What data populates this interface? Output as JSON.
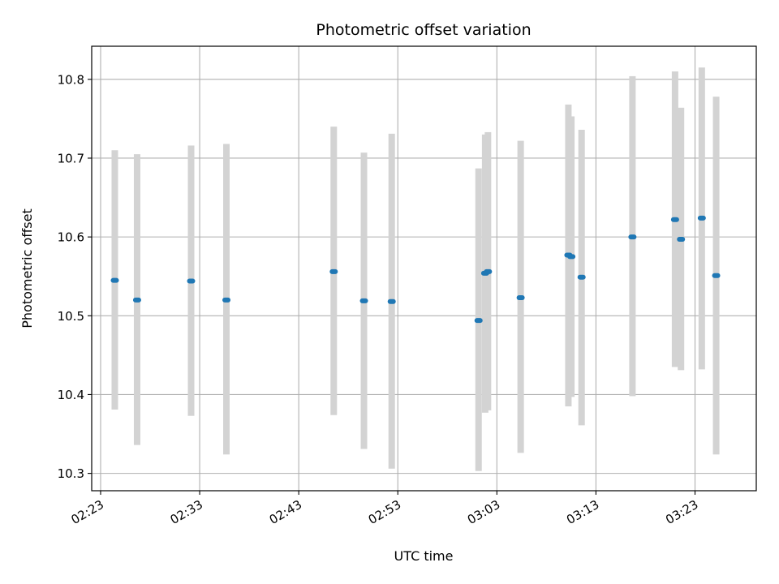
{
  "chart_data": {
    "type": "scatter",
    "title": "Photometric offset variation",
    "xlabel": "UTC time",
    "ylabel": "Photometric offset",
    "x_unit": "UTC time (HH:MM:SS)",
    "xlim": [
      "02:22:06",
      "03:29:11"
    ],
    "ylim": [
      10.278,
      10.842
    ],
    "x_ticks": [
      "02:23",
      "02:33",
      "02:43",
      "02:53",
      "03:03",
      "03:13",
      "03:23"
    ],
    "y_ticks": [
      10.3,
      10.4,
      10.5,
      10.6,
      10.7,
      10.8
    ],
    "grid": true,
    "point_color": "#1f77b4",
    "errorbar_color": "#d3d3d3",
    "series": [
      {
        "points": [
          {
            "t": "02:24:26",
            "y": 10.545,
            "lo": 10.381,
            "hi": 10.71
          },
          {
            "t": "02:26:41",
            "y": 10.52,
            "lo": 10.336,
            "hi": 10.705
          },
          {
            "t": "02:32:08",
            "y": 10.544,
            "lo": 10.373,
            "hi": 10.716
          },
          {
            "t": "02:35:42",
            "y": 10.52,
            "lo": 10.324,
            "hi": 10.718
          },
          {
            "t": "02:46:32",
            "y": 10.556,
            "lo": 10.374,
            "hi": 10.74
          },
          {
            "t": "02:49:35",
            "y": 10.519,
            "lo": 10.331,
            "hi": 10.707
          },
          {
            "t": "02:52:23",
            "y": 10.518,
            "lo": 10.306,
            "hi": 10.731
          },
          {
            "t": "03:01:09",
            "y": 10.494,
            "lo": 10.303,
            "hi": 10.687
          },
          {
            "t": "03:01:49",
            "y": 10.554,
            "lo": 10.377,
            "hi": 10.73
          },
          {
            "t": "03:02:06",
            "y": 10.556,
            "lo": 10.38,
            "hi": 10.733
          },
          {
            "t": "03:05:24",
            "y": 10.523,
            "lo": 10.326,
            "hi": 10.722
          },
          {
            "t": "03:10:13",
            "y": 10.577,
            "lo": 10.385,
            "hi": 10.768
          },
          {
            "t": "03:10:31",
            "y": 10.575,
            "lo": 10.397,
            "hi": 10.753
          },
          {
            "t": "03:11:33",
            "y": 10.549,
            "lo": 10.361,
            "hi": 10.736
          },
          {
            "t": "03:16:41",
            "y": 10.6,
            "lo": 10.398,
            "hi": 10.804
          },
          {
            "t": "03:20:59",
            "y": 10.622,
            "lo": 10.435,
            "hi": 10.81
          },
          {
            "t": "03:21:35",
            "y": 10.597,
            "lo": 10.431,
            "hi": 10.764
          },
          {
            "t": "03:23:41",
            "y": 10.624,
            "lo": 10.432,
            "hi": 10.815
          },
          {
            "t": "03:25:08",
            "y": 10.551,
            "lo": 10.324,
            "hi": 10.778
          }
        ]
      }
    ]
  }
}
